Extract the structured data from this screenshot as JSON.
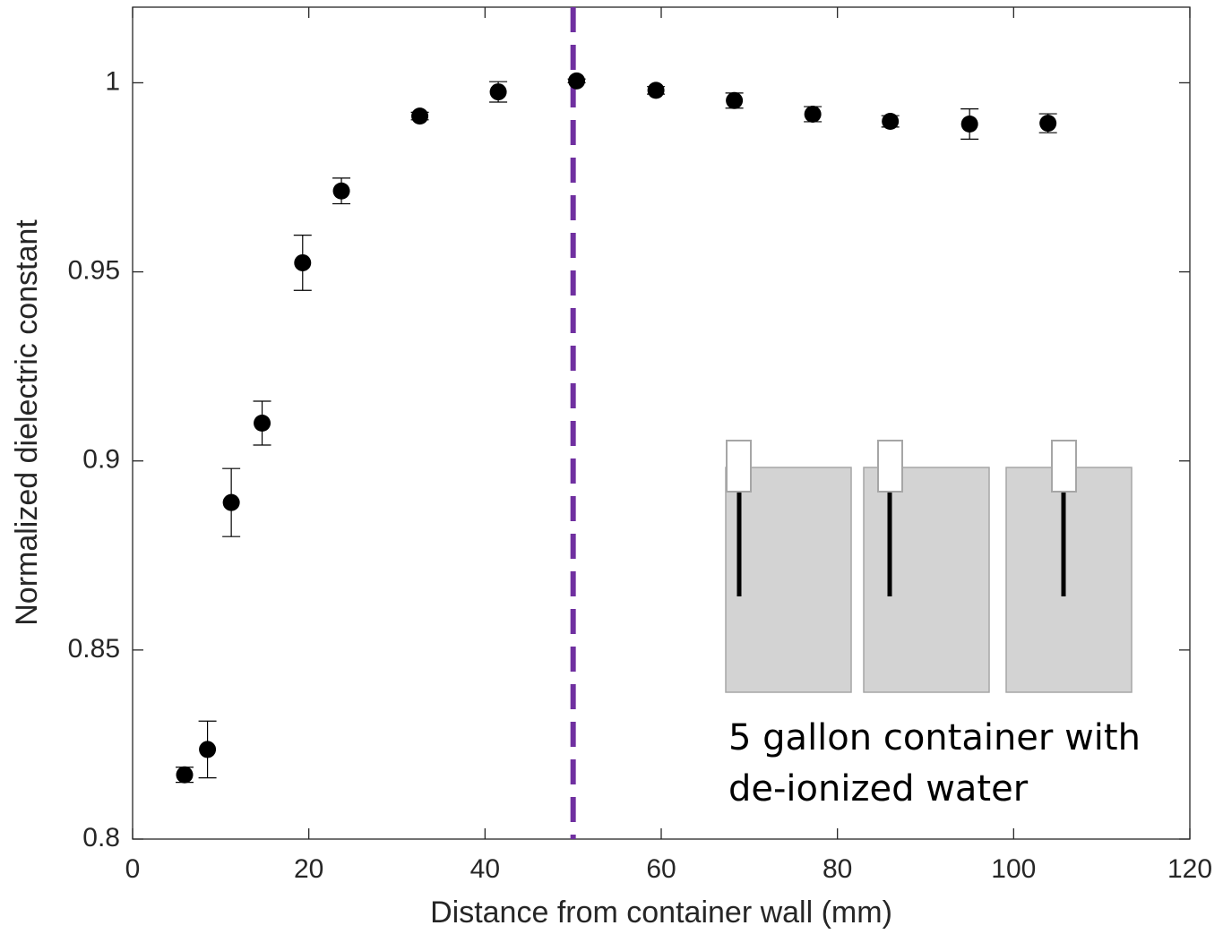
{
  "chart_data": {
    "type": "scatter",
    "x_label": "Distance from container wall (mm)",
    "y_label": "Normalized dielectric constant",
    "xlim": [
      0,
      120
    ],
    "ylim": [
      0.8,
      1.02
    ],
    "xticks": [
      0,
      20,
      40,
      60,
      80,
      100,
      120
    ],
    "yticks": [
      0.8,
      0.85,
      0.9,
      0.95,
      1
    ],
    "grid": false,
    "reference_x": 50,
    "reference_color": "#7030a0",
    "annotation_lines": [
      "5 gallon container with",
      "de-ionized water"
    ],
    "series": [
      {
        "color": "#000000",
        "x": [
          5.9,
          8.5,
          11.2,
          14.7,
          19.3,
          23.7,
          32.6,
          41.5,
          50.4,
          59.4,
          68.3,
          77.2,
          86.0,
          95.0,
          103.9
        ],
        "values": [
          0.817,
          0.8237,
          0.889,
          0.91,
          0.9524,
          0.9714,
          0.9912,
          0.9976,
          1.0005,
          0.998,
          0.9953,
          0.9917,
          0.9898,
          0.9891,
          0.9893
        ],
        "errors": [
          0.002,
          0.0075,
          0.009,
          0.0058,
          0.0073,
          0.0034,
          0.001,
          0.0027,
          0.0005,
          0.001,
          0.002,
          0.002,
          0.0015,
          0.004,
          0.0025
        ]
      }
    ]
  }
}
